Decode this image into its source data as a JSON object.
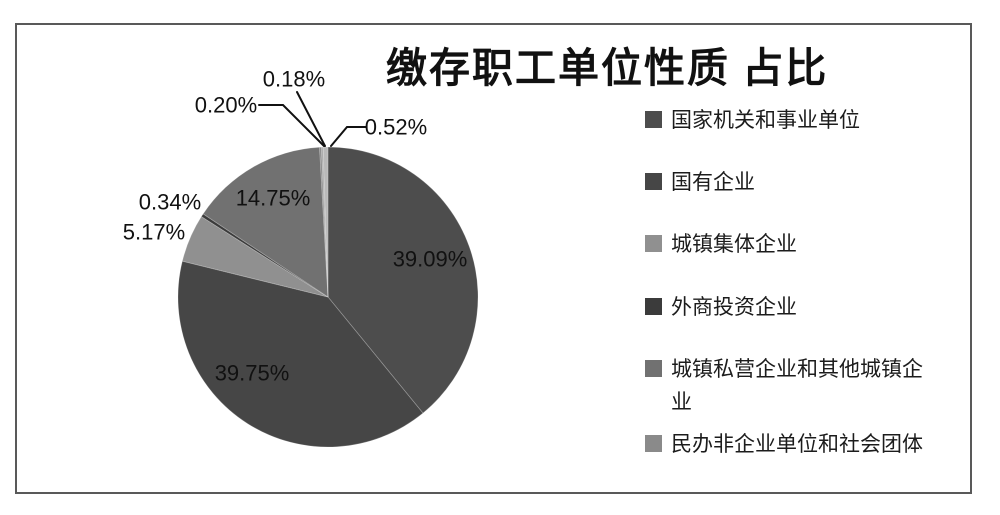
{
  "frame": {
    "border_color": "#595959",
    "background": "#ffffff"
  },
  "text_color": "#1c1c1c",
  "chart_data": {
    "type": "pie",
    "title": "缴存职工单位性质 占比",
    "legend_position": "right",
    "start_angle_deg": 0,
    "direction": "clockwise",
    "slices": [
      {
        "label": "国家机关和事业单位",
        "value": 39.09,
        "color": "#4d4d4d",
        "in_legend": true,
        "label_placement": "inside"
      },
      {
        "label": "国有企业",
        "value": 39.75,
        "color": "#464646",
        "in_legend": true,
        "label_placement": "inside"
      },
      {
        "label": "城镇集体企业",
        "value": 5.17,
        "color": "#909090",
        "in_legend": true,
        "label_placement": "outside"
      },
      {
        "label": "外商投资企业",
        "value": 0.34,
        "color": "#3b3b3b",
        "in_legend": true,
        "label_placement": "outside"
      },
      {
        "label": "城镇私营企业和其他城镇企业",
        "value": 14.75,
        "color": "#717171",
        "in_legend": true,
        "label_placement": "inside"
      },
      {
        "label": "民办非企业单位和社会团体",
        "value": 0.2,
        "color": "#8a8a8a",
        "in_legend": true,
        "label_placement": "outside-leader"
      },
      {
        "label": "",
        "value": 0.18,
        "color": "#a9a9a9",
        "in_legend": false,
        "label_placement": "outside-leader"
      },
      {
        "label": "",
        "value": 0.52,
        "color": "#b9b9b9",
        "in_legend": false,
        "label_placement": "outside-leader"
      }
    ],
    "data_labels": [
      "39.09%",
      "39.75%",
      "5.17%",
      "0.34%",
      "14.75%",
      "0.20%",
      "0.18%",
      "0.52%"
    ]
  }
}
